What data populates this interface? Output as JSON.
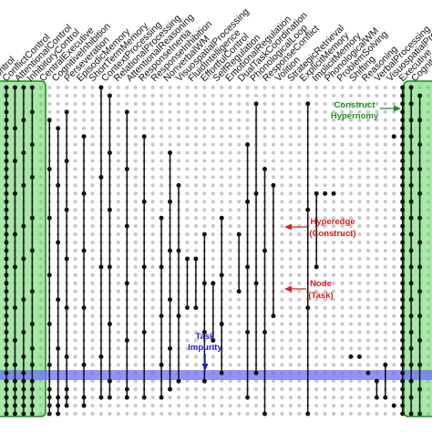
{
  "diagram": {
    "column_labels": [
      "Control",
      "ConflictControl",
      "AttentionalControl",
      "InhibitoryControl",
      "CentralExecutive",
      "CognitiveInhibition",
      "Perseveration",
      "EpisodicMemory",
      "ShortTermMemory",
      "ContextProcessing",
      "RelationalProcessing",
      "AttentionalReasoning",
      "ResponseInertia",
      "ResponseInhibition",
      "NonverbalWM",
      "VisuospatialProcessing",
      "FluidIntelligence",
      "EffortfulControl",
      "SelfRegulation",
      "EmotionalRegulation",
      "DualTaskCoordination",
      "PhonologicalLoop",
      "ResponseConflict",
      "Volition",
      "StrategicRetrieval",
      "ExplicitMemory",
      "ImplicitMemory",
      "PhonologicalWM",
      "ProblemSolving",
      "Shifting",
      "Reasoning",
      "VerbalProcessing",
      "VisuospatialProcessing",
      "Executive",
      "Cognition"
    ],
    "annotations": {
      "construct_hypernomy": [
        "Construct",
        "Hypernomy"
      ],
      "hyperedge": [
        "Hyperedge",
        "(Construct)"
      ],
      "node": [
        "Node",
        "(Task)"
      ],
      "task_impurity": [
        "Task",
        "Impurity"
      ]
    },
    "colors": {
      "green_band_fill": "#5fd35f",
      "green_band_stroke": "#1e8a1e",
      "blue_band_fill": "#6e6ef5",
      "construct_annotation": "#1f8f1f",
      "hyperedge_annotation": "#d92020",
      "task_impurity_annotation": "#2020c8",
      "node_dot": "#111111",
      "background_dot": "#c8c8c8"
    },
    "hyperedges": [
      {
        "col": 0,
        "rows": [
          0,
          1,
          2,
          3,
          4,
          5,
          6,
          7,
          8,
          9,
          10,
          11,
          12,
          13,
          14,
          15,
          16,
          17,
          18,
          19,
          20,
          21,
          22,
          23,
          24,
          25,
          26,
          27,
          28,
          29,
          30,
          31,
          32,
          33,
          34,
          35,
          36,
          37,
          38,
          39,
          40
        ]
      },
      {
        "col": 1,
        "rows": [
          0,
          5,
          9,
          13,
          18,
          22,
          27,
          31,
          34,
          36,
          37,
          38,
          39,
          40
        ]
      },
      {
        "col": 2,
        "rows": [
          0,
          4,
          8,
          12,
          17,
          21,
          26,
          30,
          33,
          35,
          36,
          37,
          38,
          39,
          40
        ]
      },
      {
        "col": 3,
        "rows": [
          0,
          3,
          7,
          11,
          16,
          20,
          25,
          29,
          32,
          34,
          36,
          37,
          38,
          39,
          40
        ]
      },
      {
        "col": 5,
        "rows": [
          4,
          10,
          16,
          23,
          29,
          34,
          37,
          38,
          39,
          40
        ]
      },
      {
        "col": 6,
        "rows": [
          5,
          12,
          19,
          26,
          32,
          38,
          39,
          40
        ]
      },
      {
        "col": 7,
        "rows": [
          3,
          9,
          15,
          21,
          27,
          33,
          37,
          38,
          39
        ]
      },
      {
        "col": 9,
        "rows": [
          6,
          13,
          20,
          27,
          34,
          38,
          39
        ]
      },
      {
        "col": 11,
        "rows": [
          0,
          11,
          22,
          33,
          38
        ]
      },
      {
        "col": 12,
        "rows": [
          1,
          8,
          15,
          22,
          29,
          36,
          38
        ]
      },
      {
        "col": 14,
        "rows": [
          3,
          10,
          17,
          24,
          31,
          37,
          38
        ]
      },
      {
        "col": 16,
        "rows": [
          6,
          14,
          22,
          30,
          38
        ]
      },
      {
        "col": 18,
        "rows": [
          16,
          22,
          28,
          34,
          38
        ]
      },
      {
        "col": 19,
        "rows": [
          8,
          14,
          20,
          26,
          32,
          37
        ]
      },
      {
        "col": 20,
        "rows": [
          12,
          20,
          28,
          36
        ]
      },
      {
        "col": 21,
        "rows": [
          21,
          27
        ]
      },
      {
        "col": 22,
        "rows": [
          21,
          27
        ]
      },
      {
        "col": 23,
        "rows": [
          18,
          24,
          30,
          36
        ]
      },
      {
        "col": 24,
        "rows": [
          24,
          31
        ]
      },
      {
        "col": 25,
        "rows": [
          16,
          23,
          29,
          35
        ]
      },
      {
        "col": 27,
        "rows": [
          18,
          25
        ]
      },
      {
        "col": 28,
        "rows": [
          7,
          14,
          22,
          30,
          38
        ]
      },
      {
        "col": 29,
        "rows": [
          2,
          13,
          24,
          35
        ]
      },
      {
        "col": 30,
        "rows": [
          10,
          20,
          30,
          40
        ]
      },
      {
        "col": 31,
        "rows": [
          12,
          28
        ]
      },
      {
        "col": 35,
        "rows": [
          2,
          15,
          27,
          40
        ]
      },
      {
        "col": 36,
        "rows": [
          13,
          22
        ]
      },
      {
        "col": 37,
        "rows": [
          13
        ]
      },
      {
        "col": 38,
        "rows": [
          13
        ]
      },
      {
        "col": 40,
        "rows": [
          33
        ]
      },
      {
        "col": 41,
        "rows": [
          33
        ]
      },
      {
        "col": 42,
        "rows": [
          35
        ]
      },
      {
        "col": 43,
        "rows": [
          36,
          38
        ]
      },
      {
        "col": 44,
        "rows": [
          34,
          38
        ]
      },
      {
        "col": 45,
        "rows": [
          39
        ]
      },
      {
        "col": 45,
        "rows": [
          6
        ]
      },
      {
        "col": 46,
        "rows": [
          0,
          1,
          2,
          3,
          4,
          5,
          6,
          7,
          8,
          9,
          10,
          11,
          12,
          13,
          14,
          15,
          16,
          17,
          18,
          19,
          20,
          21,
          22,
          23,
          24,
          25,
          26,
          27,
          28,
          29,
          30,
          31,
          32,
          33,
          34,
          35,
          36,
          37,
          38,
          39,
          40
        ]
      },
      {
        "col": 47,
        "rows": [
          0,
          2,
          4,
          6,
          8,
          10,
          12,
          14,
          16,
          18,
          20,
          22,
          24,
          26,
          28,
          30,
          32,
          34,
          36,
          38,
          40
        ]
      },
      {
        "col": 48,
        "rows": [
          1,
          4,
          7,
          10,
          13,
          16,
          19,
          22,
          25,
          28,
          31,
          34,
          37,
          40
        ]
      }
    ]
  }
}
